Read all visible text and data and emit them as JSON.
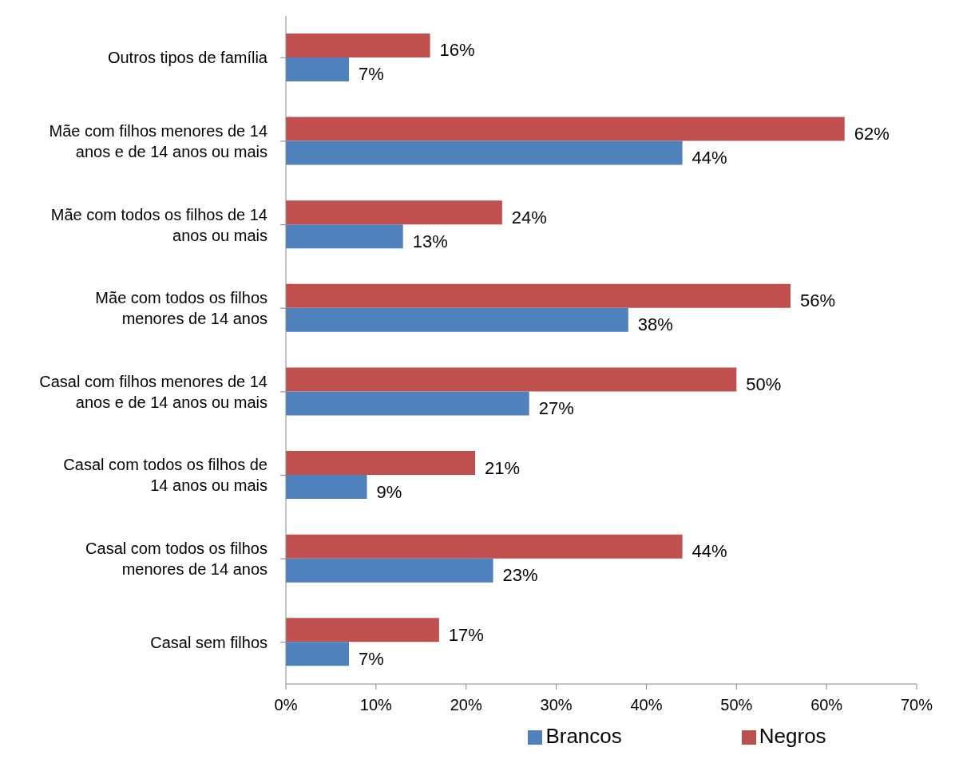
{
  "chart_data": {
    "type": "bar",
    "orientation": "horizontal",
    "categories": [
      "Outros tipos de família",
      "Mãe com filhos menores de 14 anos e de 14 anos ou mais",
      "Mãe com todos os filhos de 14 anos ou mais",
      "Mãe com todos os filhos menores de 14 anos",
      "Casal com filhos menores de 14 anos e de 14 anos ou mais",
      "Casal com todos os filhos de 14 anos ou mais",
      "Casal com todos os filhos menores de 14 anos",
      "Casal sem filhos"
    ],
    "series": [
      {
        "name": "Negros",
        "color": "#c0504d",
        "values": [
          16,
          62,
          24,
          56,
          50,
          21,
          44,
          17
        ],
        "value_labels": [
          "16%",
          "62%",
          "24%",
          "56%",
          "50%",
          "21%",
          "44%",
          "17%"
        ]
      },
      {
        "name": "Brancos",
        "color": "#4f81bd",
        "values": [
          7,
          44,
          13,
          38,
          27,
          9,
          23,
          7
        ],
        "value_labels": [
          "7%",
          "44%",
          "13%",
          "38%",
          "27%",
          "9%",
          "23%",
          "7%"
        ]
      }
    ],
    "xlim": [
      0,
      70
    ],
    "xticks": [
      {
        "value": 0,
        "label": "0%"
      },
      {
        "value": 10,
        "label": "10%"
      },
      {
        "value": 20,
        "label": "20%"
      },
      {
        "value": 30,
        "label": "30%"
      },
      {
        "value": 40,
        "label": "40%"
      },
      {
        "value": 50,
        "label": "50%"
      },
      {
        "value": 60,
        "label": "60%"
      },
      {
        "value": 70,
        "label": "70%"
      }
    ],
    "grid": false,
    "legend": "bottom"
  }
}
